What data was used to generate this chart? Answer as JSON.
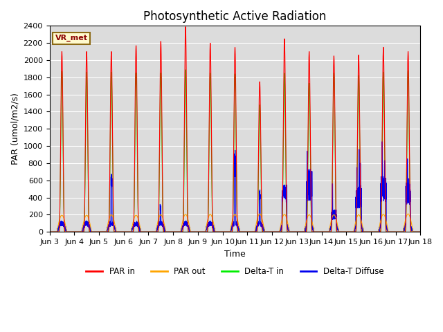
{
  "title": "Photosynthetic Active Radiation",
  "ylabel": "PAR (umol/m2/s)",
  "xlabel": "Time",
  "annotation": "VR_met",
  "ylim": [
    0,
    2400
  ],
  "yticks": [
    0,
    200,
    400,
    600,
    800,
    1000,
    1200,
    1400,
    1600,
    1800,
    2000,
    2200,
    2400
  ],
  "xtick_labels": [
    "Jun 3",
    "Jun 4",
    "Jun 5",
    "Jun 6",
    "Jun 7",
    "Jun 8",
    "Jun 9",
    "Jun 10",
    "Jun 11",
    "Jun 12",
    "Jun 13",
    "Jun 14",
    "Jun 15",
    "Jun 16",
    "Jun 17",
    "Jun 18"
  ],
  "colors": {
    "PAR_in": "#FF0000",
    "PAR_out": "#FFA500",
    "DeltaT_in": "#00EE00",
    "DeltaT_diffuse": "#0000EE"
  },
  "background_color": "#DCDCDC",
  "grid_color": "#FFFFFF",
  "title_fontsize": 12,
  "label_fontsize": 9,
  "tick_fontsize": 8
}
